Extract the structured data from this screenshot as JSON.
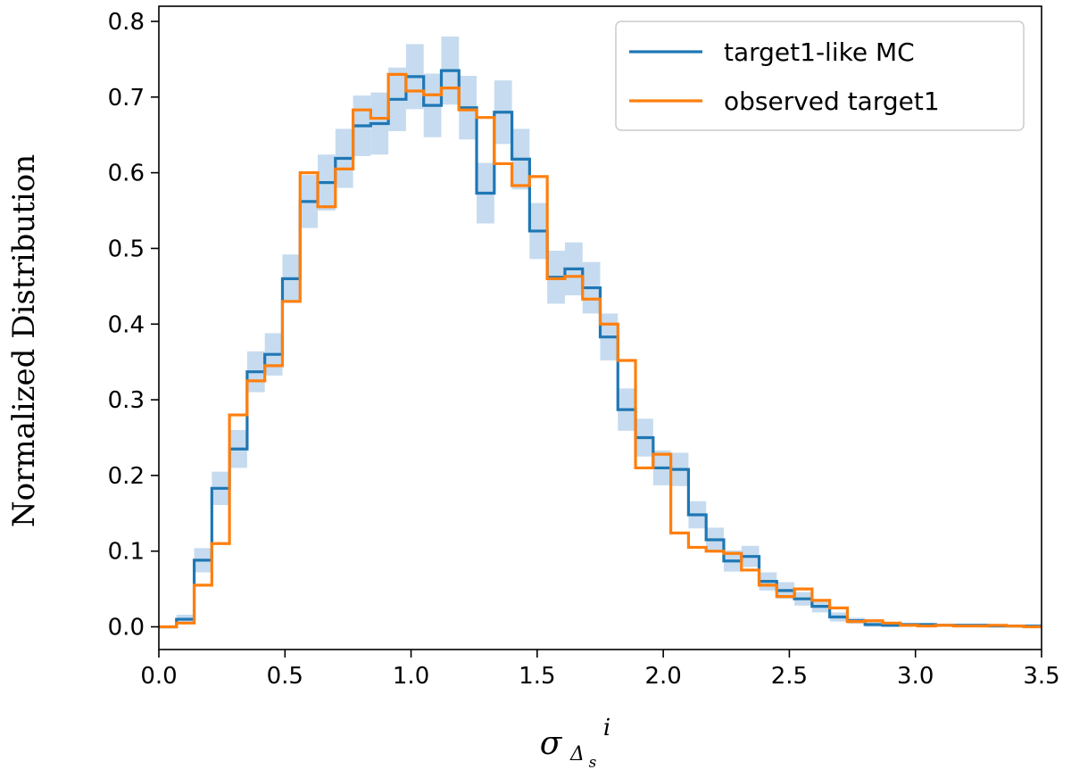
{
  "chart_data": {
    "type": "histogram-step",
    "title": "",
    "xlabel": {
      "symbol": "σ",
      "subscript": "Δ",
      "subsubscript": "s",
      "superscript": "i"
    },
    "ylabel": "Normalized Distribution",
    "xlim": [
      0.0,
      3.5
    ],
    "ylim": [
      -0.03,
      0.82
    ],
    "xticks": [
      0.0,
      0.5,
      1.0,
      1.5,
      2.0,
      2.5,
      3.0,
      3.5
    ],
    "xtick_labels": [
      "0.0",
      "0.5",
      "1.0",
      "1.5",
      "2.0",
      "2.5",
      "3.0",
      "3.5"
    ],
    "yticks": [
      0.0,
      0.1,
      0.2,
      0.3,
      0.4,
      0.5,
      0.6,
      0.7,
      0.8
    ],
    "ytick_labels": [
      "0.0",
      "0.1",
      "0.2",
      "0.3",
      "0.4",
      "0.5",
      "0.6",
      "0.7",
      "0.8"
    ],
    "grid": false,
    "legend_position": "top-right",
    "bin_edges": [
      0.0,
      0.07,
      0.14,
      0.21,
      0.28,
      0.35,
      0.42,
      0.49,
      0.56,
      0.63,
      0.7,
      0.77,
      0.84,
      0.91,
      0.98,
      1.05,
      1.12,
      1.19,
      1.26,
      1.33,
      1.4,
      1.47,
      1.54,
      1.61,
      1.68,
      1.75,
      1.82,
      1.89,
      1.96,
      2.03,
      2.1,
      2.17,
      2.24,
      2.31,
      2.38,
      2.45,
      2.52,
      2.59,
      2.66,
      2.73,
      2.8,
      2.87,
      2.94,
      3.01,
      3.08,
      3.15,
      3.22,
      3.29,
      3.36,
      3.43,
      3.5
    ],
    "series": [
      {
        "name": "target1-like MC",
        "color": "#1f77b4",
        "band_color": "#c6dbef",
        "values": [
          0.0,
          0.01,
          0.088,
          0.183,
          0.235,
          0.337,
          0.36,
          0.46,
          0.562,
          0.587,
          0.619,
          0.662,
          0.665,
          0.697,
          0.727,
          0.689,
          0.735,
          0.686,
          0.573,
          0.68,
          0.618,
          0.523,
          0.462,
          0.473,
          0.448,
          0.383,
          0.287,
          0.25,
          0.21,
          0.208,
          0.148,
          0.115,
          0.087,
          0.093,
          0.06,
          0.048,
          0.037,
          0.027,
          0.013,
          0.008,
          0.003,
          0.002,
          0.003,
          0.003,
          0.002,
          0.002,
          0.002,
          0.001,
          0.001,
          0.001
        ],
        "errors": [
          0.002,
          0.006,
          0.016,
          0.022,
          0.025,
          0.027,
          0.028,
          0.032,
          0.035,
          0.037,
          0.039,
          0.04,
          0.041,
          0.042,
          0.043,
          0.042,
          0.045,
          0.042,
          0.04,
          0.042,
          0.04,
          0.037,
          0.035,
          0.035,
          0.034,
          0.031,
          0.028,
          0.025,
          0.023,
          0.022,
          0.018,
          0.016,
          0.014,
          0.014,
          0.012,
          0.011,
          0.009,
          0.008,
          0.006,
          0.004,
          0.003,
          0.002,
          0.002,
          0.002,
          0.002,
          0.002,
          0.002,
          0.001,
          0.001,
          0.001
        ]
      },
      {
        "name": "observed target1",
        "color": "#ff7f0e",
        "values": [
          0.0,
          0.005,
          0.055,
          0.11,
          0.28,
          0.325,
          0.345,
          0.43,
          0.6,
          0.555,
          0.605,
          0.683,
          0.672,
          0.73,
          0.708,
          0.703,
          0.712,
          0.683,
          0.673,
          0.612,
          0.583,
          0.595,
          0.46,
          0.463,
          0.433,
          0.4,
          0.352,
          0.21,
          0.228,
          0.124,
          0.105,
          0.1,
          0.097,
          0.075,
          0.055,
          0.04,
          0.05,
          0.035,
          0.025,
          0.007,
          0.008,
          0.005,
          0.002,
          0.001,
          0.002,
          0.001,
          0.001,
          0.002,
          0.001,
          0.0
        ]
      }
    ]
  }
}
